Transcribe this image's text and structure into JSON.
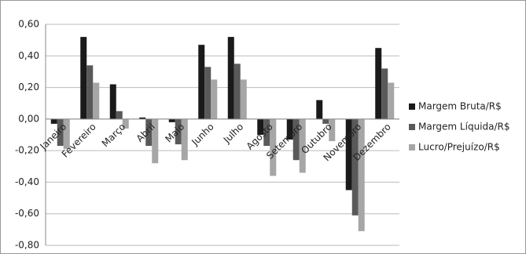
{
  "chart_data": {
    "type": "bar",
    "categories": [
      "Janeiro",
      "Fevereiro",
      "Março",
      "Abril",
      "Maio",
      "Junho",
      "Julho",
      "Agosto",
      "Setembro",
      "Outubro",
      "Novembro",
      "Dezembro"
    ],
    "series": [
      {
        "name": "Margem Bruta/R$",
        "color": "#1a1a1a",
        "values": [
          -0.03,
          0.52,
          0.22,
          0.01,
          -0.02,
          0.47,
          0.52,
          -0.1,
          -0.13,
          0.12,
          -0.45,
          0.45
        ]
      },
      {
        "name": "Margem Líquida/R$",
        "color": "#595959",
        "values": [
          -0.17,
          0.34,
          0.05,
          -0.17,
          -0.16,
          0.33,
          0.35,
          -0.17,
          -0.26,
          -0.03,
          -0.61,
          0.32
        ]
      },
      {
        "name": "Lucro/Prejuízo/R$",
        "color": "#a6a6a6",
        "values": [
          -0.19,
          0.23,
          -0.06,
          -0.28,
          -0.26,
          0.25,
          0.25,
          -0.36,
          -0.34,
          -0.14,
          -0.71,
          0.23
        ]
      }
    ],
    "ylim": [
      -0.8,
      0.6
    ],
    "yticks": [
      {
        "value": -0.8,
        "label": "-0,80"
      },
      {
        "value": -0.6,
        "label": "-0,60"
      },
      {
        "value": -0.4,
        "label": "-0,40"
      },
      {
        "value": -0.2,
        "label": "-0,20"
      },
      {
        "value": 0,
        "label": "0,00"
      },
      {
        "value": 0.2,
        "label": "0,20"
      },
      {
        "value": 0.4,
        "label": "0,40"
      },
      {
        "value": 0.6,
        "label": "0,60"
      }
    ],
    "grid": true,
    "legend": "right"
  }
}
